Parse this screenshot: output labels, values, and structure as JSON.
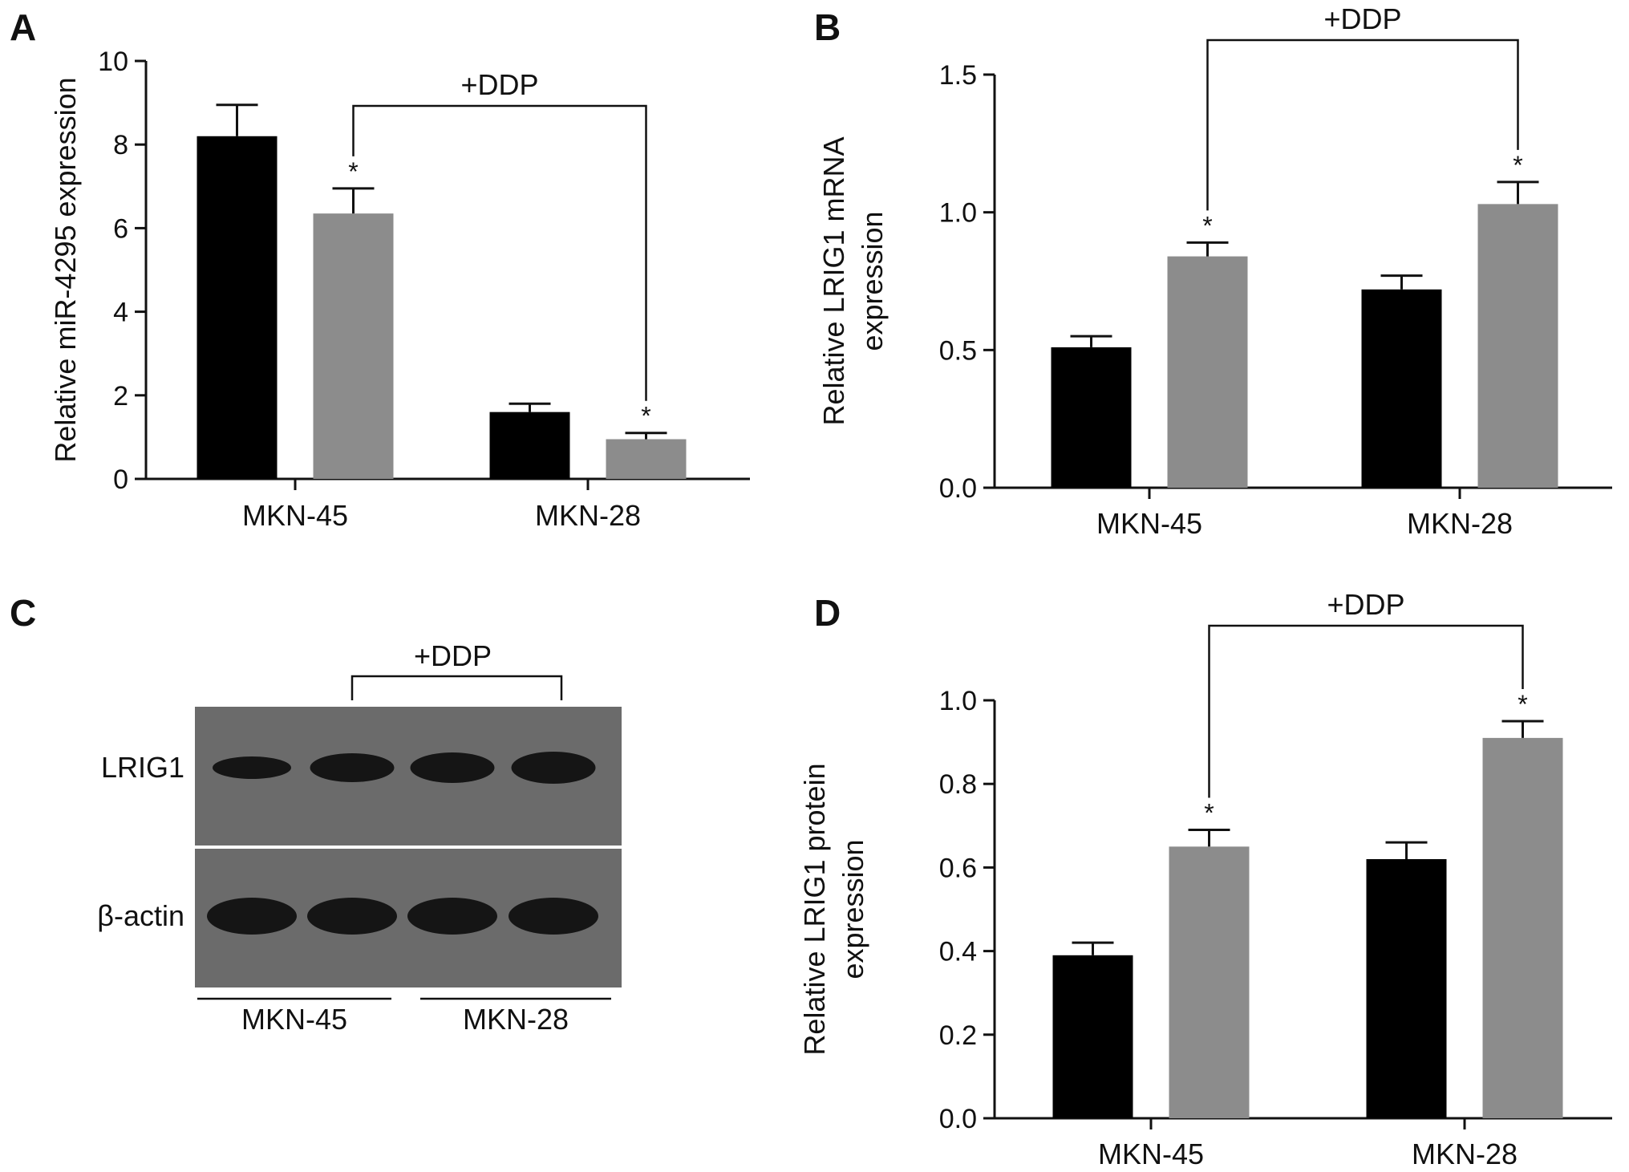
{
  "colors": {
    "control": "#000000",
    "ddp": "#8c8c8c",
    "blot_bg": "#6b6b6b",
    "band": "#151515"
  },
  "chart_data": [
    {
      "panel": "A",
      "type": "bar",
      "categories": [
        "MKN-45",
        "MKN-28"
      ],
      "series": [
        {
          "values": [
            8.2,
            1.6
          ],
          "errors": [
            0.75,
            0.2
          ],
          "color": "#000000"
        },
        {
          "values": [
            6.35,
            0.95
          ],
          "errors": [
            0.6,
            0.15
          ],
          "color": "#8c8c8c"
        }
      ],
      "significance": [
        [
          false,
          false
        ],
        [
          true,
          true
        ]
      ],
      "significance_mark": "*",
      "ylabel": "Relative miR-4295 expression",
      "ylim": [
        0,
        10
      ],
      "yticks": [
        0,
        2,
        4,
        6,
        8,
        10
      ],
      "ytick_labels": [
        "0",
        "2",
        "4",
        "6",
        "8",
        "10"
      ],
      "bracket_label": "+DDP"
    },
    {
      "panel": "B",
      "type": "bar",
      "categories": [
        "MKN-45",
        "MKN-28"
      ],
      "series": [
        {
          "values": [
            0.51,
            0.72
          ],
          "errors": [
            0.04,
            0.05
          ],
          "color": "#000000"
        },
        {
          "values": [
            0.84,
            1.03
          ],
          "errors": [
            0.05,
            0.08
          ],
          "color": "#8c8c8c"
        }
      ],
      "significance": [
        [
          false,
          false
        ],
        [
          true,
          true
        ]
      ],
      "significance_mark": "*",
      "ylabel": [
        "Relative LRIG1 mRNA",
        "expression"
      ],
      "ylim": [
        0,
        1.5
      ],
      "yticks": [
        0,
        0.5,
        1.0,
        1.5
      ],
      "ytick_labels": [
        "0.0",
        "0.5",
        "1.0",
        "1.5"
      ],
      "bracket_label": "+DDP"
    },
    {
      "panel": "D",
      "type": "bar",
      "categories": [
        "MKN-45",
        "MKN-28"
      ],
      "series": [
        {
          "values": [
            0.39,
            0.62
          ],
          "errors": [
            0.03,
            0.04
          ],
          "color": "#000000"
        },
        {
          "values": [
            0.65,
            0.91
          ],
          "errors": [
            0.04,
            0.04
          ],
          "color": "#8c8c8c"
        }
      ],
      "significance": [
        [
          false,
          false
        ],
        [
          true,
          true
        ]
      ],
      "significance_mark": "*",
      "ylabel": [
        "Relative LRIG1 protein",
        "expression"
      ],
      "ylim": [
        0,
        1.0
      ],
      "yticks": [
        0,
        0.2,
        0.4,
        0.6,
        0.8,
        1.0
      ],
      "ytick_labels": [
        "0.0",
        "0.2",
        "0.4",
        "0.6",
        "0.8",
        "1.0"
      ],
      "bracket_label": "+DDP"
    }
  ],
  "blot": {
    "panel": "C",
    "rows": [
      "LRIG1",
      "β-actin"
    ],
    "groups": [
      "MKN-45",
      "MKN-28"
    ],
    "bracket_label": "+DDP"
  }
}
